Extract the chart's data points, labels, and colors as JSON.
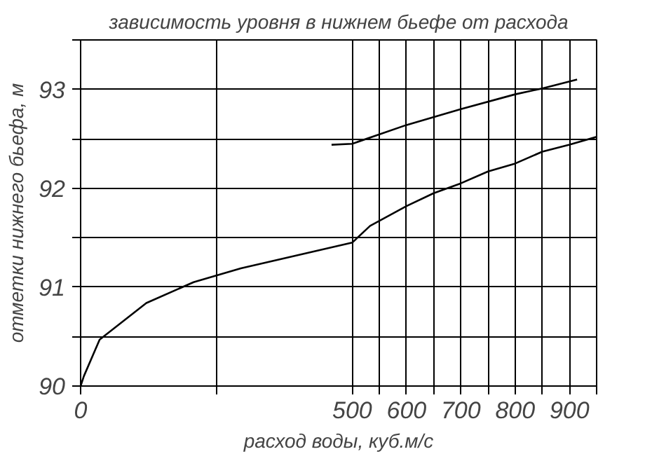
{
  "chart_data": {
    "type": "line",
    "title": "зависимость уровня в нижнем бьефе от расхода",
    "xlabel": "расход воды, куб.м/с",
    "ylabel": "отметки нижнего бьефа, м",
    "xlim": [
      0,
      950
    ],
    "ylim": [
      90,
      93.5
    ],
    "xticks": [
      0,
      {
        "value": 250,
        "label": null
      },
      500,
      {
        "value": 550,
        "label": null
      },
      600,
      {
        "value": 650,
        "label": null
      },
      700,
      {
        "value": 750,
        "label": null
      },
      800,
      {
        "value": 850,
        "label": null
      },
      900,
      {
        "value": 950,
        "label": null
      }
    ],
    "yticks": [
      90,
      {
        "value": 90.5,
        "label": null
      },
      91,
      {
        "value": 91.5,
        "label": null
      },
      92,
      {
        "value": 92.5,
        "label": null
      },
      93,
      {
        "value": 93.5,
        "label": null
      }
    ],
    "grid": true,
    "line_style": "solid",
    "marker": "none",
    "series": [
      {
        "color": "#000000",
        "x": [
          0,
          6,
          35,
          121,
          208,
          295,
          500,
          533,
          600,
          650,
          700,
          750,
          800,
          850,
          900,
          950
        ],
        "values": [
          90.0,
          90.1,
          90.47,
          90.84,
          91.05,
          91.19,
          91.45,
          91.62,
          91.82,
          91.95,
          92.05,
          92.17,
          92.25,
          92.37,
          92.44,
          92.52
        ]
      },
      {
        "color": "#000000",
        "x": [
          462,
          500,
          600,
          700,
          800,
          850,
          914
        ],
        "values": [
          92.44,
          92.45,
          92.64,
          92.8,
          92.95,
          93.01,
          93.1
        ]
      }
    ]
  }
}
